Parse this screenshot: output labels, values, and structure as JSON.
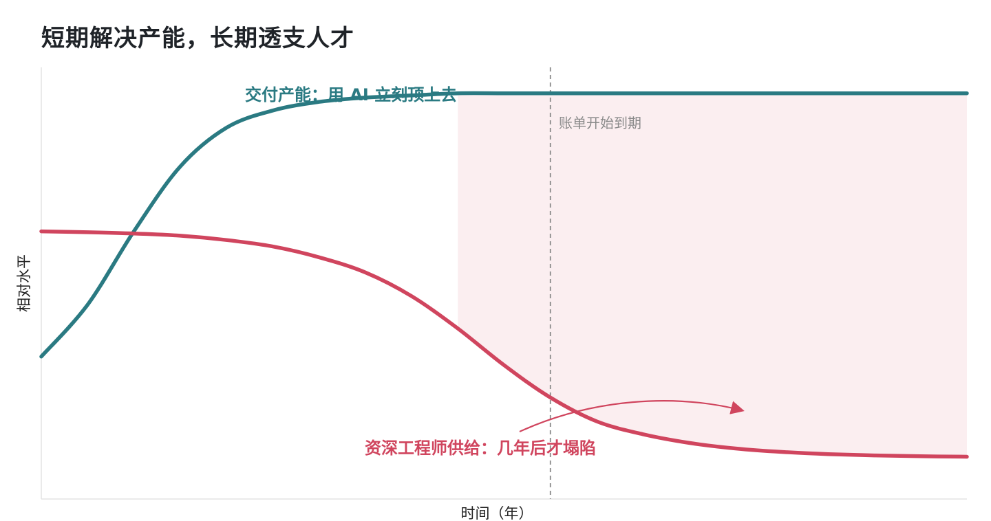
{
  "chart_data": {
    "type": "line",
    "title": "短期解决产能，长期透支人才",
    "xlabel": "时间（年）",
    "ylabel": "相对水平",
    "grid": false,
    "series": [
      {
        "name": "交付产能：用 AI 立刻顶上去",
        "color": "#2a7a82",
        "x": [
          0,
          0.5,
          1,
          1.5,
          2,
          2.5,
          3,
          3.5,
          4,
          4.5,
          5,
          5.5,
          6,
          6.5,
          7,
          7.5,
          8,
          8.5,
          9,
          9.5,
          10
        ],
        "values": [
          0.33,
          0.45,
          0.62,
          0.77,
          0.86,
          0.9,
          0.92,
          0.93,
          0.935,
          0.94,
          0.94,
          0.94,
          0.94,
          0.94,
          0.94,
          0.94,
          0.94,
          0.94,
          0.94,
          0.94,
          0.94
        ]
      },
      {
        "name": "资深工程师供给：几年后才塌陷",
        "color": "#d0455e",
        "x": [
          0,
          0.5,
          1,
          1.5,
          2,
          2.5,
          3,
          3.5,
          4,
          4.5,
          5,
          5.5,
          6,
          6.5,
          7,
          7.5,
          8,
          8.5,
          9,
          9.5,
          10
        ],
        "values": [
          0.62,
          0.618,
          0.615,
          0.61,
          0.6,
          0.585,
          0.56,
          0.525,
          0.47,
          0.395,
          0.31,
          0.235,
          0.18,
          0.15,
          0.13,
          0.117,
          0.109,
          0.104,
          0.101,
          0.099,
          0.098
        ]
      }
    ],
    "xlim": [
      0,
      10
    ],
    "ylim": [
      0,
      1
    ],
    "vline": {
      "x": 5.5,
      "label": "账单开始到期"
    },
    "shaded_region": {
      "x_start": 4.5,
      "x_end": 10,
      "color": "#fbeef0"
    },
    "annotations": [
      {
        "text": "交付产能：用 AI 立刻顶上去",
        "color": "#2a7a82"
      },
      {
        "text": "资深工程师供给：几年后才塌陷",
        "color": "#d0455e"
      }
    ]
  }
}
